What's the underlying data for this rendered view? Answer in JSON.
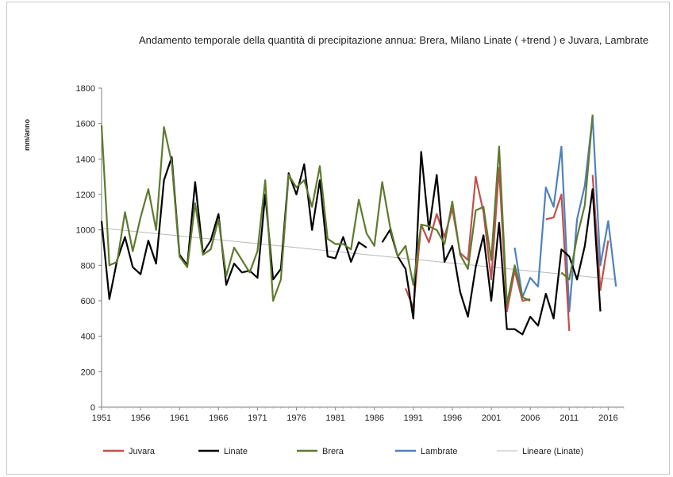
{
  "chart_data": {
    "type": "line",
    "title": "Andamento temporale della quantità di precipitazione annua: Brera, Milano Linate ( +trend ) e Juvara, Lambrate",
    "xlabel": "",
    "ylabel": "mm/anno",
    "ylim": [
      0,
      1800
    ],
    "xlim": [
      1951,
      2018
    ],
    "yticks": [
      0,
      200,
      400,
      600,
      800,
      1000,
      1200,
      1400,
      1600,
      1800
    ],
    "xticks": [
      1951,
      1956,
      1961,
      1966,
      1971,
      1976,
      1981,
      1986,
      1991,
      1996,
      2001,
      2006,
      2011,
      2016
    ],
    "grid": false,
    "legend_position": "bottom",
    "series": [
      {
        "name": "Juvara",
        "color": "#c0504d",
        "x": [
          1990,
          1991,
          1992,
          1993,
          1994,
          1995,
          1996,
          1997,
          1998,
          1999,
          2000,
          2001,
          2002,
          2003,
          2004,
          2005,
          2006,
          null,
          2008,
          2009,
          2010,
          2011,
          null,
          2014,
          2015,
          2016
        ],
        "values": [
          670,
          560,
          1030,
          930,
          1090,
          960,
          1120,
          870,
          830,
          1300,
          1100,
          720,
          1350,
          540,
          770,
          600,
          610,
          null,
          1060,
          1070,
          1200,
          430,
          null,
          1310,
          660,
          940
        ]
      },
      {
        "name": "Linate",
        "color": "#000000",
        "x": [
          1951,
          1952,
          1953,
          1954,
          1955,
          1956,
          1957,
          1958,
          1959,
          1960,
          1961,
          1962,
          1963,
          1964,
          1965,
          1966,
          1967,
          1968,
          1969,
          1970,
          1971,
          1972,
          1973,
          1974,
          1975,
          1976,
          1977,
          1978,
          1979,
          1980,
          1981,
          1982,
          1983,
          1984,
          1985,
          null,
          1987,
          1988,
          1989,
          1990,
          1991,
          1992,
          1993,
          1994,
          1995,
          1996,
          1997,
          1998,
          1999,
          2000,
          2001,
          2002,
          2003,
          2004,
          2005,
          2006,
          2007,
          2008,
          2009,
          2010,
          2011,
          2012,
          2013,
          2014,
          2015
        ],
        "values": [
          1050,
          610,
          830,
          960,
          790,
          750,
          940,
          810,
          1280,
          1410,
          860,
          800,
          1270,
          870,
          940,
          1090,
          690,
          810,
          760,
          770,
          730,
          1200,
          720,
          780,
          1320,
          1200,
          1370,
          1000,
          1280,
          850,
          840,
          960,
          820,
          930,
          900,
          null,
          930,
          1000,
          850,
          780,
          500,
          1440,
          1000,
          1310,
          820,
          910,
          650,
          510,
          790,
          970,
          600,
          1040,
          440,
          440,
          410,
          510,
          460,
          640,
          500,
          890,
          850,
          720,
          910,
          1230,
          540
        ]
      },
      {
        "name": "Brera",
        "color": "#5f7a2f",
        "x": [
          1951,
          1952,
          1953,
          1954,
          1955,
          1956,
          1957,
          1958,
          1959,
          1960,
          1961,
          1962,
          1963,
          1964,
          1965,
          1966,
          1967,
          1968,
          1969,
          1970,
          1971,
          1972,
          1973,
          1974,
          1975,
          1976,
          1977,
          1978,
          1979,
          1980,
          1981,
          1982,
          1983,
          1984,
          1985,
          1986,
          1987,
          1988,
          1989,
          1990,
          1991,
          1992,
          1993,
          1994,
          1995,
          1996,
          1997,
          1998,
          1999,
          2000,
          2001,
          2002,
          2003,
          2004,
          2005,
          2006,
          null,
          2010,
          2011,
          2012,
          2013,
          2014
        ],
        "values": [
          1590,
          800,
          820,
          1100,
          880,
          1070,
          1230,
          1000,
          1580,
          1380,
          850,
          790,
          1150,
          860,
          890,
          1060,
          740,
          900,
          830,
          760,
          880,
          1280,
          600,
          720,
          1310,
          1240,
          1280,
          1130,
          1360,
          950,
          920,
          920,
          890,
          1170,
          980,
          910,
          1270,
          1020,
          850,
          910,
          690,
          1030,
          1020,
          1000,
          920,
          1160,
          860,
          780,
          1110,
          1130,
          830,
          1470,
          580,
          800,
          620,
          600,
          null,
          760,
          720,
          960,
          1140,
          1650
        ]
      },
      {
        "name": "Lambrate",
        "color": "#4f81bd",
        "x": [
          2004,
          2005,
          2006,
          2007,
          2008,
          2009,
          2010,
          2011,
          2012,
          2013,
          2014,
          2015,
          2016,
          2017
        ],
        "values": [
          900,
          620,
          730,
          680,
          1240,
          1130,
          1470,
          540,
          1060,
          1250,
          1640,
          800,
          1050,
          680
        ]
      }
    ],
    "trend": {
      "name": "Lineare (Linate)",
      "color": "#b9b9b9",
      "x": [
        1951,
        2017
      ],
      "values": [
        1010,
        720
      ]
    }
  }
}
